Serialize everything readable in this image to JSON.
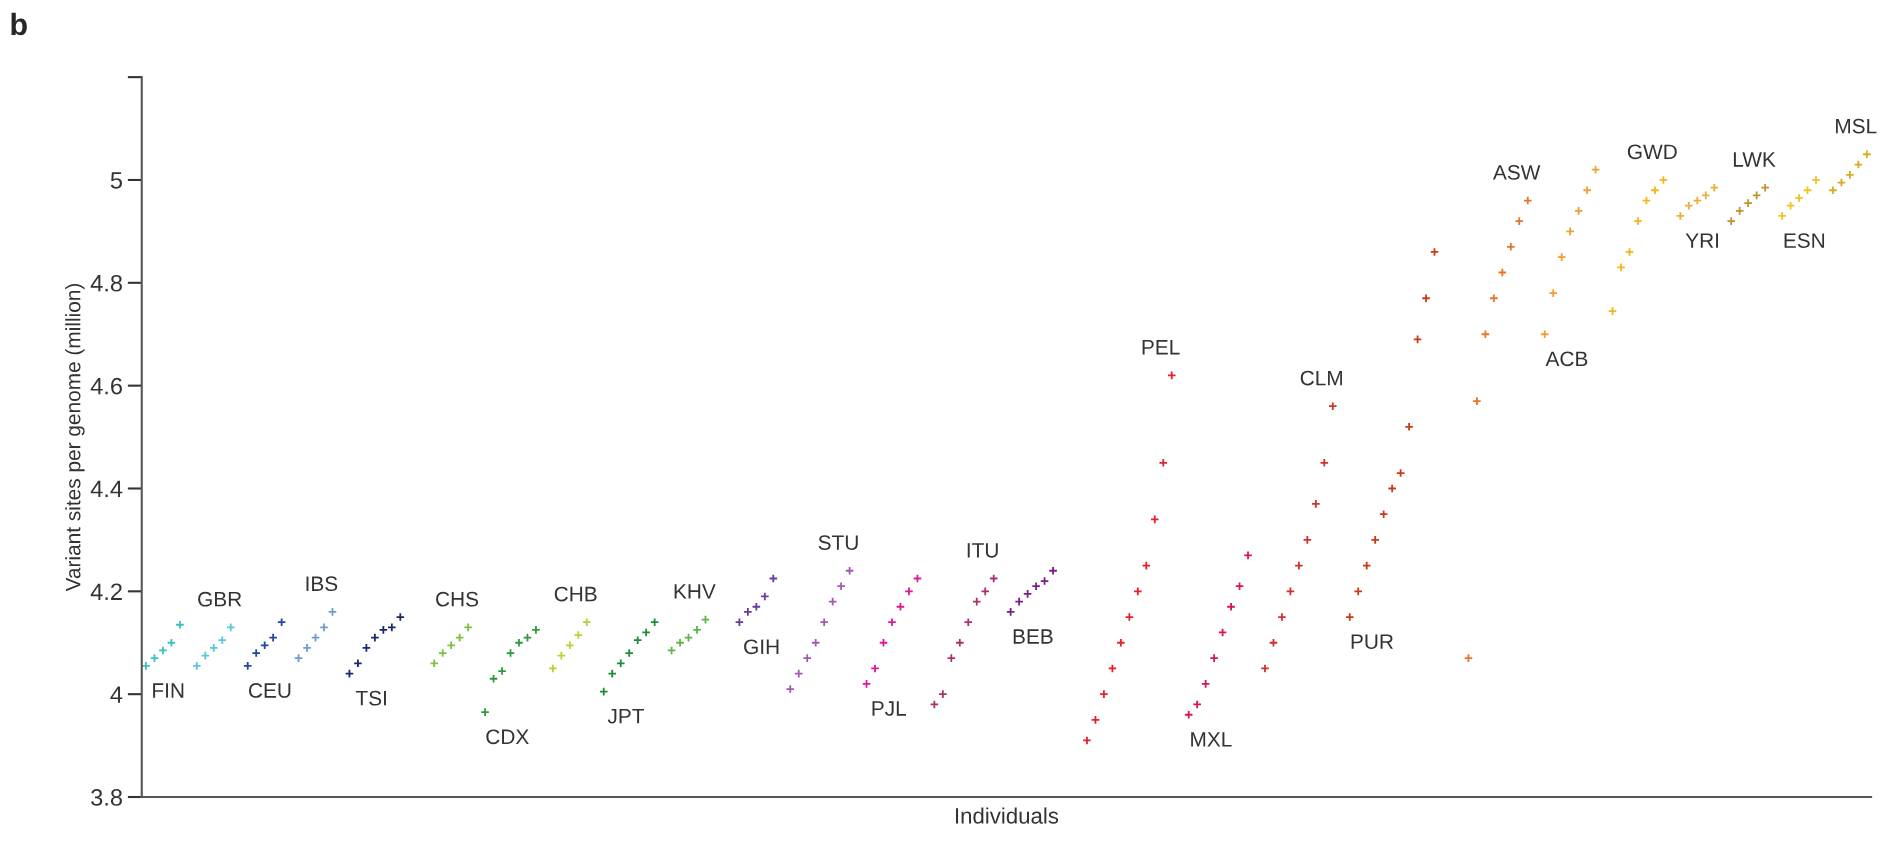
{
  "chart_data": {
    "type": "scatter",
    "title": "b",
    "xlabel": "Individuals",
    "ylabel": "Variant sites per genome (million)",
    "annotations": [
      "FIN",
      "GBR",
      "CEU",
      "IBS",
      "TSI",
      "CHS",
      "CDX",
      "CHB",
      "JPT",
      "KHV",
      "GIH",
      "STU",
      "PJL",
      "ITU",
      "BEB",
      "PEL",
      "MXL",
      "CLM",
      "PUR",
      "ASW",
      "ACB",
      "GWD",
      "YRI",
      "LWK",
      "ESN",
      "MSL"
    ],
    "ylim": [
      3.8,
      5.2
    ],
    "yticks": [
      3.8,
      4,
      4.2,
      4.4,
      4.6,
      4.8,
      5,
      {
        "value": 5.2,
        "label": null
      }
    ],
    "marker": "cross",
    "grid": false,
    "categories": [
      null,
      null,
      null,
      null,
      null,
      null,
      null,
      null,
      null,
      null,
      null,
      null,
      null,
      null,
      null,
      null,
      null,
      null,
      null,
      null,
      null,
      null,
      null,
      null,
      null,
      null,
      null,
      null,
      null,
      null,
      null,
      null,
      null,
      null,
      null,
      null,
      null,
      null,
      null,
      null,
      null,
      null,
      null,
      null,
      null,
      null,
      null,
      null,
      null,
      null,
      null,
      null,
      null,
      null,
      null,
      null,
      null,
      null,
      null,
      null,
      null,
      null,
      null,
      null,
      null,
      null,
      null,
      null,
      null,
      null,
      null,
      null,
      null,
      null,
      null,
      null,
      null,
      null,
      null,
      null,
      null,
      null,
      null,
      null,
      null,
      null,
      null,
      null,
      null,
      null,
      null,
      null,
      null,
      null,
      null,
      null,
      null,
      null,
      null,
      null,
      null,
      null,
      null,
      null,
      null,
      null,
      null,
      null,
      null,
      null,
      null,
      null,
      null,
      null,
      null,
      null,
      null,
      null,
      null,
      null,
      null,
      null,
      null,
      null,
      null,
      null,
      null,
      null,
      null,
      null,
      null,
      null,
      null,
      null,
      null,
      null,
      null,
      null,
      null,
      null,
      null,
      null,
      null,
      null,
      null,
      null,
      null,
      null,
      null,
      null,
      null,
      null,
      null,
      null,
      null,
      null,
      null,
      null,
      null,
      null,
      null,
      null,
      null,
      null,
      null,
      null,
      null,
      null,
      null,
      null,
      null,
      null,
      null,
      null,
      null,
      null,
      null,
      null,
      null,
      null,
      null,
      null,
      null,
      null,
      null,
      null,
      null,
      null,
      null,
      null,
      null,
      null,
      null,
      null,
      null,
      null,
      null,
      null,
      null,
      null,
      null,
      null,
      null,
      null
    ],
    "values": [
      4.055,
      4.07,
      4.085,
      4.1,
      4.135,
      null,
      4.055,
      4.075,
      4.09,
      4.105,
      4.13,
      null,
      4.055,
      4.08,
      4.095,
      4.11,
      4.14,
      null,
      4.07,
      4.09,
      4.11,
      4.13,
      4.16,
      null,
      4.04,
      4.06,
      4.09,
      4.11,
      4.125,
      4.13,
      4.15,
      null,
      null,
      null,
      4.06,
      4.08,
      4.095,
      4.11,
      4.13,
      null,
      3.965,
      4.03,
      4.045,
      4.08,
      4.1,
      4.11,
      4.125,
      null,
      4.05,
      4.075,
      4.095,
      4.115,
      4.14,
      null,
      4.005,
      4.04,
      4.06,
      4.08,
      4.105,
      4.12,
      4.14,
      null,
      4.085,
      4.1,
      4.11,
      4.125,
      4.145,
      null,
      null,
      null,
      4.14,
      4.16,
      4.17,
      4.19,
      4.225,
      null,
      4.01,
      4.04,
      4.07,
      4.1,
      4.14,
      4.18,
      4.21,
      4.24,
      null,
      4.02,
      4.05,
      4.1,
      4.14,
      4.17,
      4.2,
      4.225,
      null,
      3.98,
      4.0,
      4.07,
      4.1,
      4.14,
      4.18,
      4.2,
      4.225,
      null,
      4.16,
      4.18,
      4.195,
      4.21,
      4.22,
      4.24,
      null,
      null,
      null,
      3.91,
      3.95,
      4.0,
      4.05,
      4.1,
      4.15,
      4.2,
      4.25,
      4.34,
      4.45,
      4.62,
      null,
      3.96,
      3.98,
      4.02,
      4.07,
      4.12,
      4.17,
      4.21,
      4.27,
      null,
      4.05,
      4.1,
      4.15,
      4.2,
      4.25,
      4.3,
      4.37,
      4.45,
      4.56,
      null,
      4.15,
      4.2,
      4.25,
      4.3,
      4.35,
      4.4,
      4.43,
      4.52,
      4.69,
      4.77,
      4.86,
      null,
      null,
      null,
      4.07,
      4.57,
      4.7,
      4.77,
      4.82,
      4.87,
      4.92,
      4.96,
      null,
      4.7,
      4.78,
      4.85,
      4.9,
      4.94,
      4.98,
      5.02,
      null,
      4.745,
      4.83,
      4.86,
      4.92,
      4.96,
      4.98,
      5.0,
      null,
      4.93,
      4.95,
      4.96,
      4.97,
      4.985,
      null,
      4.92,
      4.94,
      4.955,
      4.97,
      4.985,
      null,
      4.93,
      4.95,
      4.965,
      4.98,
      5.0,
      null,
      4.98,
      4.995,
      5.01,
      5.03,
      5.05
    ],
    "colors": [
      "#3bbfc4",
      "#3bbfc4",
      "#3bbfc4",
      "#3bbfc4",
      "#3bbfc4",
      null,
      "#5ac8dc",
      "#5ac8dc",
      "#5ac8dc",
      "#5ac8dc",
      "#5ac8dc",
      null,
      "#23479c",
      "#23479c",
      "#23479c",
      "#23479c",
      "#23479c",
      null,
      "#6f9bd1",
      "#6f9bd1",
      "#6f9bd1",
      "#6f9bd1",
      "#6f9bd1",
      null,
      "#1b2a6b",
      "#1b2a6b",
      "#1b2a6b",
      "#1b2a6b",
      "#1b2a6b",
      "#1b2a6b",
      "#1b2a6b",
      null,
      null,
      null,
      "#7cc242",
      "#7cc242",
      "#7cc242",
      "#7cc242",
      "#7cc242",
      null,
      "#2e9a3e",
      "#2e9a3e",
      "#2e9a3e",
      "#2e9a3e",
      "#2e9a3e",
      "#2e9a3e",
      "#2e9a3e",
      null,
      "#b5d334",
      "#b5d334",
      "#b5d334",
      "#b5d334",
      "#b5d334",
      null,
      "#1f8a3a",
      "#1f8a3a",
      "#1f8a3a",
      "#1f8a3a",
      "#1f8a3a",
      "#1f8a3a",
      "#1f8a3a",
      null,
      "#5bb846",
      "#5bb846",
      "#5bb846",
      "#5bb846",
      "#5bb846",
      null,
      null,
      null,
      "#6a3d9a",
      "#6a3d9a",
      "#6a3d9a",
      "#6a3d9a",
      "#6a3d9a",
      null,
      "#a45ab0",
      "#a45ab0",
      "#a45ab0",
      "#a45ab0",
      "#a45ab0",
      "#a45ab0",
      "#a45ab0",
      "#a45ab0",
      null,
      "#e0199b",
      "#e0199b",
      "#e0199b",
      "#e0199b",
      "#e0199b",
      "#e0199b",
      "#e0199b",
      null,
      "#a8326e",
      "#a8326e",
      "#a8326e",
      "#a8326e",
      "#a8326e",
      "#a8326e",
      "#a8326e",
      "#a8326e",
      null,
      "#7b1f86",
      "#7b1f86",
      "#7b1f86",
      "#7b1f86",
      "#7b1f86",
      "#7b1f86",
      null,
      null,
      null,
      "#e8202a",
      "#e8202a",
      "#e8202a",
      "#e8202a",
      "#e8202a",
      "#e8202a",
      "#e8202a",
      "#e8202a",
      "#e8202a",
      "#e8202a",
      "#e8202a",
      null,
      "#d6184e",
      "#d6184e",
      "#d6184e",
      "#d6184e",
      "#d6184e",
      "#d6184e",
      "#d6184e",
      "#d6184e",
      null,
      "#d0312d",
      "#d0312d",
      "#d0312d",
      "#d0312d",
      "#d0312d",
      "#d0312d",
      "#d0312d",
      "#d0312d",
      "#d0312d",
      null,
      "#c83c1a",
      "#c83c1a",
      "#c83c1a",
      "#c83c1a",
      "#c83c1a",
      "#c83c1a",
      "#c83c1a",
      "#c83c1a",
      "#c83c1a",
      "#c83c1a",
      "#c83c1a",
      null,
      null,
      null,
      "#e8742a",
      "#e8742a",
      "#e8742a",
      "#e8742a",
      "#e8742a",
      "#e8742a",
      "#e8742a",
      "#e8742a",
      null,
      "#f0a030",
      "#f0a030",
      "#f0a030",
      "#f0a030",
      "#f0a030",
      "#f0a030",
      "#f0a030",
      null,
      "#f2b61f",
      "#f2b61f",
      "#f2b61f",
      "#f2b61f",
      "#f2b61f",
      "#f2b61f",
      "#f2b61f",
      null,
      "#e9b03a",
      "#e9b03a",
      "#e9b03a",
      "#e9b03a",
      "#e9b03a",
      null,
      "#c3922e",
      "#c3922e",
      "#c3922e",
      "#c3922e",
      "#c3922e",
      null,
      "#f4c21d",
      "#f4c21d",
      "#f4c21d",
      "#f4c21d",
      "#f4c21d",
      null,
      "#d6ac22",
      "#d6ac22",
      "#d6ac22",
      "#d6ac22",
      "#d6ac22"
    ]
  }
}
